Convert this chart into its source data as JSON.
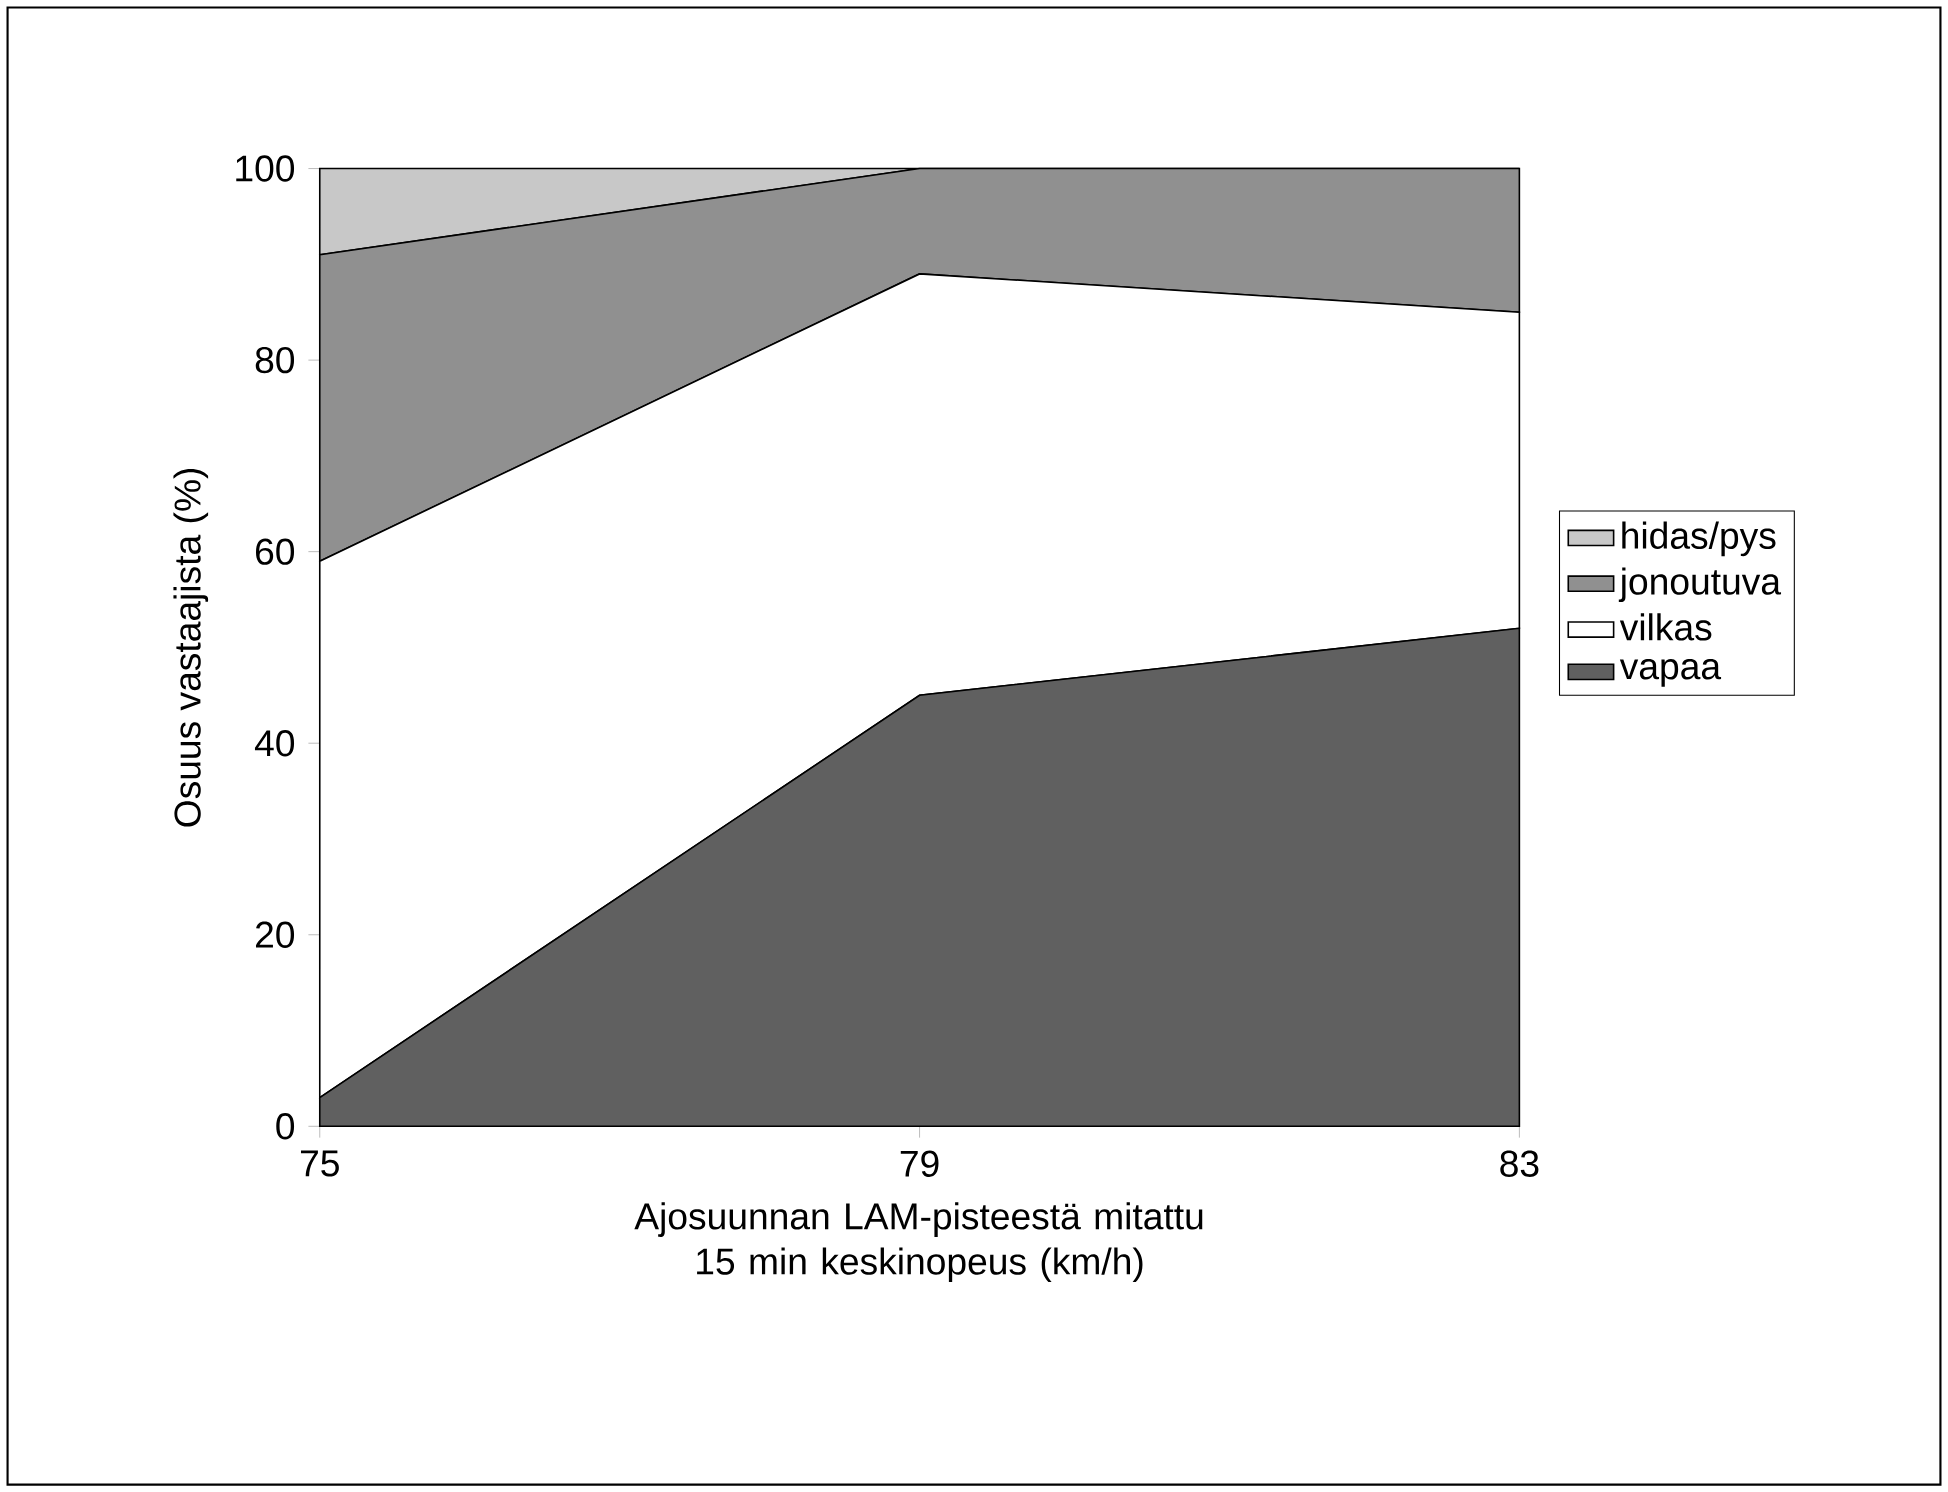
{
  "chart_data": {
    "type": "area",
    "stacked": true,
    "xlabel": "Ajosuunnan LAM-pisteestä mitattu 15 min keskinopeus (km/h)",
    "ylabel": "Osuus vastaajista (%)",
    "x": [
      75,
      79,
      83
    ],
    "xlim": [
      75,
      83
    ],
    "xticks": [
      75,
      79,
      83
    ],
    "ylim": [
      0,
      100
    ],
    "yticks": [
      0,
      20,
      40,
      60,
      80,
      100
    ],
    "legend": "right",
    "series": [
      {
        "name": "vapaa",
        "color": "#606060",
        "values": [
          3,
          45,
          52
        ]
      },
      {
        "name": "vilkas",
        "color": "#ffffff",
        "values": [
          56,
          44,
          33
        ]
      },
      {
        "name": "jonoutuva",
        "color": "#909090",
        "values": [
          32,
          11,
          15
        ]
      },
      {
        "name": "hidas/pys",
        "color": "#c8c8c8",
        "values": [
          9,
          0,
          0
        ]
      }
    ]
  }
}
